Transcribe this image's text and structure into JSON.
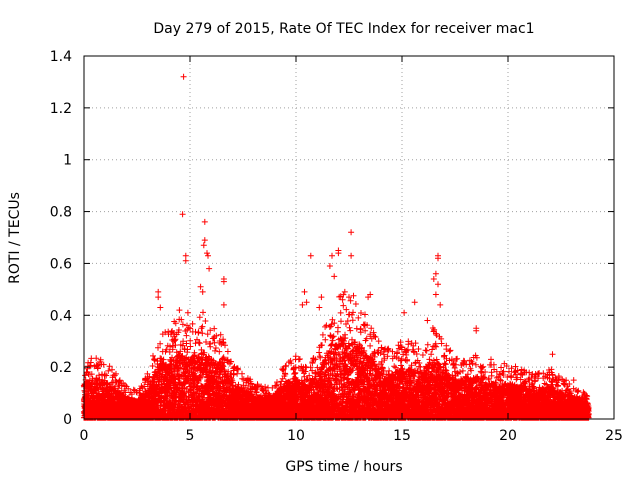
{
  "chart_data": {
    "type": "scatter",
    "title": "Day 279 of 2015, Rate Of TEC Index for receiver mac1",
    "xlabel": "GPS time / hours",
    "ylabel": "ROTI / TECUs",
    "xlim": [
      0,
      25
    ],
    "ylim": [
      0,
      1.4
    ],
    "grid": true,
    "marker": "+",
    "color": "#ff0000",
    "x_ticks": [
      0,
      5,
      10,
      15,
      20,
      25
    ],
    "x_tick_labels": [
      "0",
      "5",
      "10",
      "15",
      "20",
      "25"
    ],
    "y_ticks": [
      0,
      0.2,
      0.4,
      0.6,
      0.8,
      1,
      1.2,
      1.4
    ],
    "y_tick_labels": [
      "0",
      "0.2",
      "0.4",
      "0.6",
      "0.8",
      "1",
      "1.2",
      "1.4"
    ],
    "series": [
      {
        "name": "ROTI",
        "density_profile": [
          [
            0.0,
            0.12
          ],
          [
            0.5,
            0.14
          ],
          [
            1.0,
            0.13
          ],
          [
            1.5,
            0.1
          ],
          [
            2.0,
            0.07
          ],
          [
            2.5,
            0.06
          ],
          [
            3.0,
            0.1
          ],
          [
            3.5,
            0.18
          ],
          [
            4.0,
            0.2
          ],
          [
            4.5,
            0.22
          ],
          [
            5.0,
            0.2
          ],
          [
            5.5,
            0.24
          ],
          [
            6.0,
            0.2
          ],
          [
            6.5,
            0.18
          ],
          [
            7.0,
            0.12
          ],
          [
            7.5,
            0.1
          ],
          [
            8.0,
            0.08
          ],
          [
            8.5,
            0.07
          ],
          [
            9.0,
            0.08
          ],
          [
            9.5,
            0.12
          ],
          [
            10.0,
            0.14
          ],
          [
            10.5,
            0.11
          ],
          [
            11.0,
            0.15
          ],
          [
            11.5,
            0.22
          ],
          [
            12.0,
            0.27
          ],
          [
            12.5,
            0.28
          ],
          [
            13.0,
            0.25
          ],
          [
            13.5,
            0.2
          ],
          [
            14.0,
            0.16
          ],
          [
            14.5,
            0.15
          ],
          [
            15.0,
            0.17
          ],
          [
            15.5,
            0.17
          ],
          [
            16.0,
            0.16
          ],
          [
            16.5,
            0.2
          ],
          [
            17.0,
            0.17
          ],
          [
            17.5,
            0.13
          ],
          [
            18.0,
            0.13
          ],
          [
            18.5,
            0.14
          ],
          [
            19.0,
            0.12
          ],
          [
            19.5,
            0.12
          ],
          [
            20.0,
            0.12
          ],
          [
            20.5,
            0.11
          ],
          [
            21.0,
            0.1
          ],
          [
            21.5,
            0.1
          ],
          [
            22.0,
            0.11
          ],
          [
            22.5,
            0.09
          ],
          [
            23.0,
            0.08
          ],
          [
            23.5,
            0.06
          ],
          [
            23.8,
            0.05
          ]
        ],
        "outliers": [
          [
            4.7,
            1.32
          ],
          [
            4.65,
            0.79
          ],
          [
            4.8,
            0.63
          ],
          [
            4.8,
            0.61
          ],
          [
            5.7,
            0.76
          ],
          [
            5.7,
            0.69
          ],
          [
            5.65,
            0.67
          ],
          [
            5.8,
            0.64
          ],
          [
            5.85,
            0.63
          ],
          [
            5.9,
            0.58
          ],
          [
            6.6,
            0.54
          ],
          [
            6.6,
            0.53
          ],
          [
            6.6,
            0.44
          ],
          [
            5.5,
            0.51
          ],
          [
            5.6,
            0.49
          ],
          [
            3.5,
            0.49
          ],
          [
            3.5,
            0.47
          ],
          [
            3.6,
            0.43
          ],
          [
            4.5,
            0.42
          ],
          [
            4.9,
            0.41
          ],
          [
            10.7,
            0.63
          ],
          [
            10.4,
            0.49
          ],
          [
            10.5,
            0.45
          ],
          [
            10.3,
            0.44
          ],
          [
            11.7,
            0.63
          ],
          [
            11.6,
            0.59
          ],
          [
            11.8,
            0.55
          ],
          [
            12.0,
            0.65
          ],
          [
            12.0,
            0.64
          ],
          [
            12.6,
            0.72
          ],
          [
            12.6,
            0.63
          ],
          [
            12.3,
            0.49
          ],
          [
            12.5,
            0.47
          ],
          [
            12.2,
            0.46
          ],
          [
            13.4,
            0.47
          ],
          [
            13.5,
            0.48
          ],
          [
            11.2,
            0.47
          ],
          [
            11.1,
            0.43
          ],
          [
            16.7,
            0.63
          ],
          [
            16.7,
            0.62
          ],
          [
            16.6,
            0.56
          ],
          [
            16.5,
            0.54
          ],
          [
            16.7,
            0.52
          ],
          [
            16.6,
            0.48
          ],
          [
            16.8,
            0.44
          ],
          [
            15.6,
            0.45
          ],
          [
            15.1,
            0.41
          ],
          [
            16.2,
            0.38
          ],
          [
            18.5,
            0.35
          ],
          [
            18.5,
            0.34
          ],
          [
            19.2,
            0.23
          ],
          [
            22.1,
            0.25
          ],
          [
            23.1,
            0.15
          ]
        ]
      }
    ]
  }
}
